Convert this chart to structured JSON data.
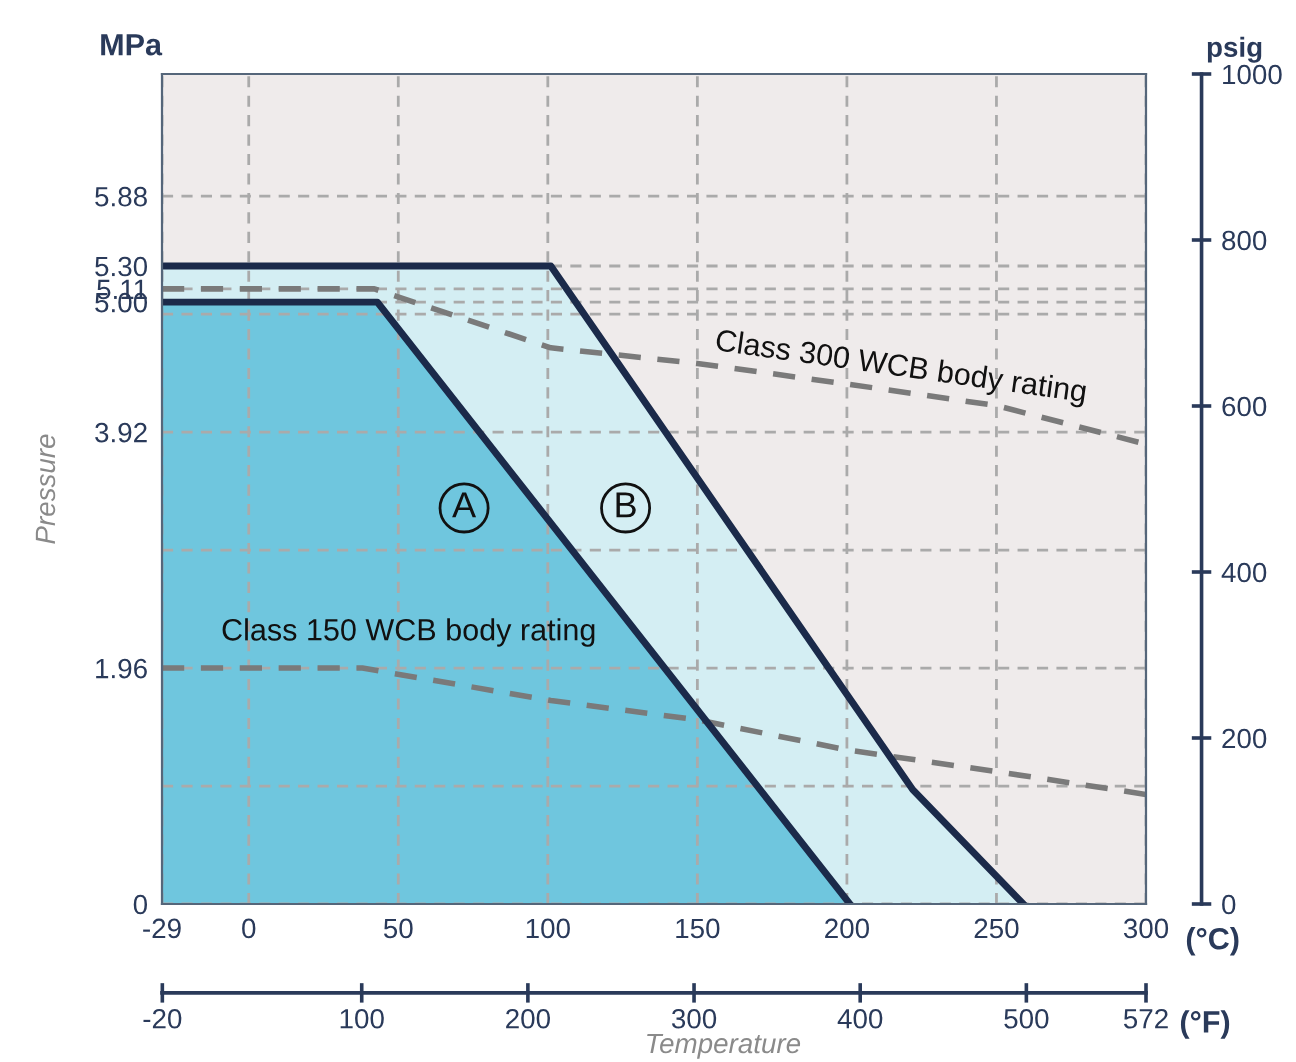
{
  "chart_data": {
    "type": "area",
    "xlabel": "Temperature",
    "ylabel": "Pressure",
    "y2label": "psig",
    "xlim": [
      -29,
      300
    ],
    "xticks": [
      -29,
      0,
      50,
      100,
      150,
      200,
      250,
      300
    ],
    "ylim": [
      0,
      6.895
    ],
    "yticks": [
      0,
      {
        "value": 0.98,
        "label": null
      },
      1.96,
      {
        "value": 2.94,
        "label": null
      },
      3.92,
      {
        "value": 4.9,
        "label": null
      },
      {
        "value": 5.0,
        "label": "5.00"
      },
      5.11,
      {
        "value": 5.3,
        "label": "5.30"
      },
      5.88
    ],
    "y2lim": [
      0,
      1000
    ],
    "y2ticks": [
      0,
      200,
      400,
      600,
      800,
      1000
    ],
    "x2lim": [
      -20.2,
      572
    ],
    "x2ticks": [
      -20,
      100,
      200,
      300,
      400,
      500,
      572
    ],
    "x2label": "(°F)",
    "grid": true,
    "series": [
      {
        "color": "#d4eef3",
        "x": [
          -29,
          101,
          222,
          259
        ],
        "values": [
          5.3,
          5.3,
          0.95,
          0
        ]
      },
      {
        "color": "#6fc6de",
        "x": [
          -29,
          43,
          201
        ],
        "values": [
          5.0,
          5.0,
          0
        ]
      },
      {
        "type": "line",
        "color": "#7a7a7a",
        "line_style": "dashed",
        "x": [
          -29,
          42,
          101,
          150,
          200,
          250,
          300
        ],
        "values": [
          5.11,
          5.11,
          4.62,
          4.49,
          4.32,
          4.14,
          3.82
        ]
      },
      {
        "type": "line",
        "color": "#7a7a7a",
        "line_style": "dashed",
        "x": [
          -29,
          38,
          101,
          150,
          200,
          250,
          300
        ],
        "values": [
          1.96,
          1.96,
          1.69,
          1.53,
          1.28,
          1.1,
          0.91
        ]
      }
    ],
    "annotations": [
      {
        "text": "A",
        "x": 72,
        "y": 3.29
      },
      {
        "text": "B",
        "x": 126,
        "y": 3.29
      },
      "Class 300 WCB body rating",
      "Class 150 WCB body rating",
      "MPa",
      "(°C)"
    ]
  }
}
